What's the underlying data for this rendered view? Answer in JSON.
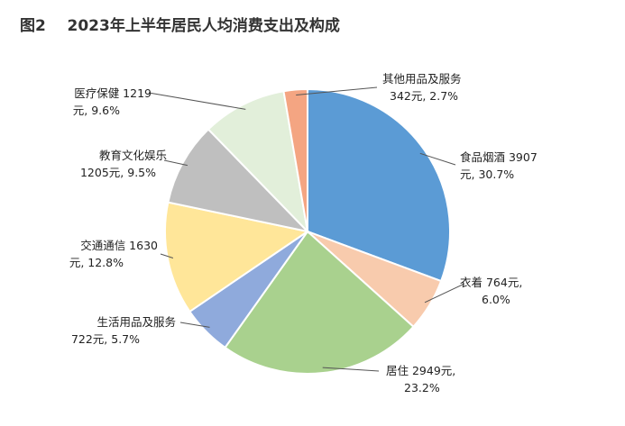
{
  "title": "图2    2023年上半年居民人均消费支出及构成",
  "chart_data": {
    "type": "pie",
    "title": "2023年上半年居民人均消费支出及构成",
    "slices": [
      {
        "name": "食品烟酒",
        "value": 3907,
        "value_text": "3907",
        "percent": 30.7,
        "percent_text": "30.7%",
        "color": "#5b9bd5"
      },
      {
        "name": "衣着",
        "value": 764,
        "value_text": "764元,",
        "percent": 6.0,
        "percent_text": "6.0%",
        "color": "#f8cbad"
      },
      {
        "name": "居住",
        "value": 2949,
        "value_text": "2949元,",
        "percent": 23.2,
        "percent_text": "23.2%",
        "color": "#a9d18e"
      },
      {
        "name": "生活用品及服务",
        "value": 722,
        "value_text": "722元,",
        "percent": 5.7,
        "percent_text": "5.7%",
        "color": "#8faadc"
      },
      {
        "name": "交通通信",
        "value": 1630,
        "value_text": "1630",
        "percent": 12.8,
        "percent_text": "12.8%",
        "color": "#ffe699"
      },
      {
        "name": "教育文化娱乐",
        "value": 1205,
        "value_text": "1205元,",
        "percent": 9.5,
        "percent_text": "9.5%",
        "color": "#bfbfbf"
      },
      {
        "name": "医疗保健",
        "value": 1219,
        "value_text": "1219",
        "percent": 9.6,
        "percent_text": "9.6%",
        "color": "#e2efda"
      },
      {
        "name": "其他用品及服务",
        "value": 342,
        "value_text": "342元,",
        "percent": 2.7,
        "percent_text": "2.7%",
        "color": "#f4a582"
      }
    ],
    "start": "12 o'clock",
    "direction": "clockwise",
    "legend": "none"
  },
  "labels": {
    "food": {
      "line1": "食品烟酒 3907",
      "line2": "元, 30.7%"
    },
    "cloth": {
      "line1": "衣着 764元,",
      "line2": "6.0%"
    },
    "house": {
      "line1": "居住 2949元,",
      "line2": "23.2%"
    },
    "daily": {
      "line1": "生活用品及服务",
      "line2": "722元, 5.7%"
    },
    "trans": {
      "line1": "交通通信 1630",
      "line2": "元, 12.8%"
    },
    "edu": {
      "line1": "教育文化娱乐",
      "line2": "1205元, 9.5%"
    },
    "med": {
      "line1": "医疗保健 1219",
      "line2": "元, 9.6%"
    },
    "other": {
      "line1": "其他用品及服务",
      "line2": "342元, 2.7%"
    }
  }
}
